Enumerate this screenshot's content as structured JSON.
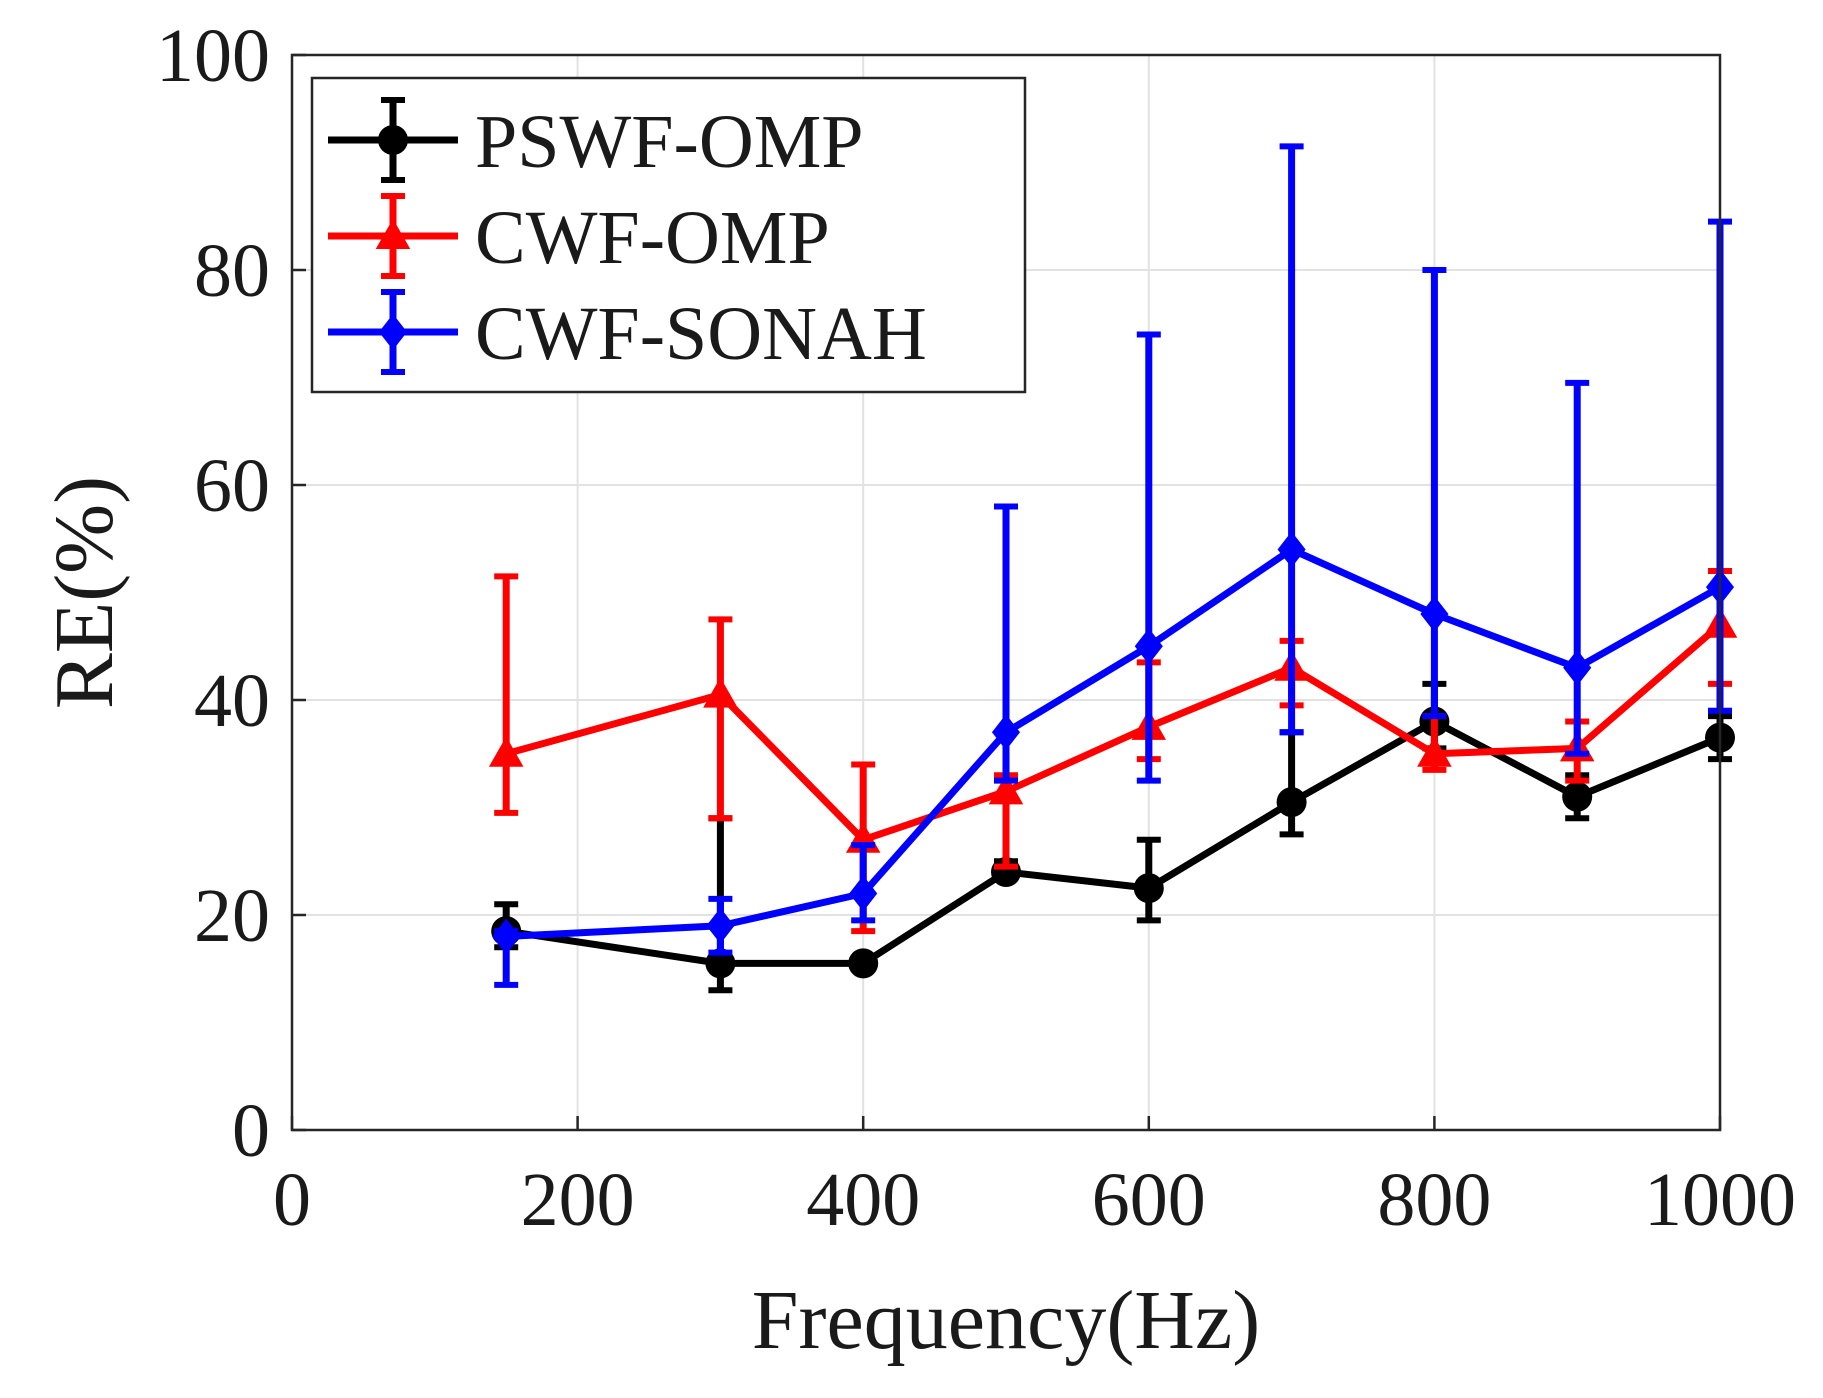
{
  "chart_data": {
    "type": "line",
    "title": "",
    "xlabel": "Frequency(Hz)",
    "ylabel": "RE(%)",
    "xlim": [
      0,
      1000
    ],
    "ylim": [
      0,
      100
    ],
    "xticks": [
      0,
      200,
      400,
      600,
      800,
      1000
    ],
    "yticks": [
      0,
      20,
      40,
      60,
      80,
      100
    ],
    "xtick_labels": [
      "0",
      "200",
      "400",
      "600",
      "800",
      "1000"
    ],
    "ytick_labels": [
      "0",
      "20",
      "40",
      "60",
      "80",
      "100"
    ],
    "grid": true,
    "legend_position": "top-left",
    "x": [
      150,
      300,
      400,
      500,
      600,
      700,
      800,
      900,
      1000
    ],
    "series": [
      {
        "name": "PSWF-OMP",
        "color": "#000000",
        "marker": "circle",
        "values": [
          18.5,
          15.5,
          15.5,
          24,
          22.5,
          30.5,
          38,
          31,
          36.5
        ],
        "err_low": [
          17,
          13,
          15,
          23.5,
          19.5,
          27.5,
          35.5,
          29,
          34.5
        ],
        "err_high": [
          21,
          29,
          16,
          25,
          27,
          37,
          41.5,
          33,
          38.5
        ]
      },
      {
        "name": "CWF-OMP",
        "color": "#ff0000",
        "marker": "triangle",
        "values": [
          35,
          40.5,
          27,
          31.5,
          37.5,
          43,
          35,
          35.5,
          47
        ],
        "err_low": [
          29.5,
          29,
          18.5,
          24.5,
          34.5,
          39.5,
          33.5,
          32.5,
          41.5
        ],
        "err_high": [
          51.5,
          47.5,
          34,
          33,
          43.5,
          45.5,
          38.5,
          38,
          52
        ]
      },
      {
        "name": "CWF-SONAH",
        "color": "#0000ff",
        "marker": "diamond",
        "values": [
          18,
          19,
          22,
          37,
          45,
          54,
          48,
          43,
          50.5
        ],
        "err_low": [
          13.5,
          16.5,
          19.5,
          32.5,
          32.5,
          37,
          38.5,
          35,
          39
        ],
        "err_high": [
          18.5,
          21.5,
          26.5,
          58,
          74,
          91.5,
          80,
          69.5,
          84.5
        ]
      }
    ]
  }
}
